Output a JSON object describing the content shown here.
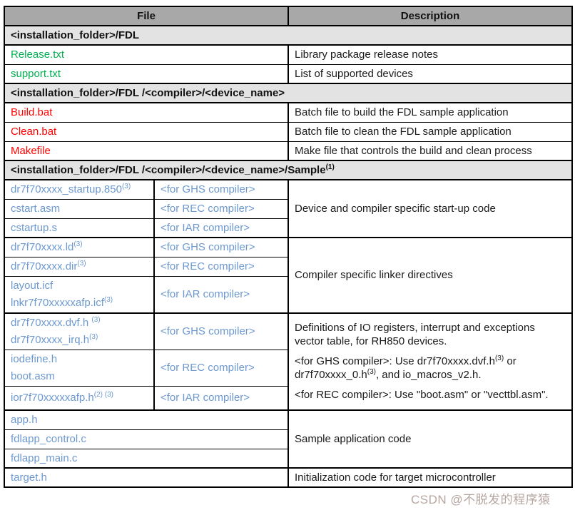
{
  "colors": {
    "header_bg": "#a8a8a8",
    "section_bg": "#e3e3e3",
    "file_green": "#00b050",
    "file_red": "#ff0000",
    "file_blue": "#6d99d0",
    "border": "#000000",
    "watermark": "#b09e98"
  },
  "watermark": {
    "text": "CSDN @不脱发的程序猿"
  },
  "table": {
    "header": {
      "file": "File",
      "description": "Description"
    },
    "sections": [
      {
        "label": "<installation_folder>/FDL",
        "sup": ""
      },
      {
        "label": "<installation_folder>/FDL /<compiler>/<device_name>",
        "sup": ""
      },
      {
        "label": "<installation_folder>/FDL /<compiler>/<device_name>/Sample",
        "sup": "(1)"
      }
    ],
    "rows": {
      "release": {
        "file": "Release.txt",
        "desc": "Library package release notes"
      },
      "support": {
        "file": "support.txt",
        "desc": "List of supported devices"
      },
      "build": {
        "file": "Build.bat",
        "desc": "Batch file to build the FDL sample application"
      },
      "clean": {
        "file": "Clean.bat",
        "desc": "Batch file to clean the FDL sample application"
      },
      "makefile": {
        "file": "Makefile",
        "desc": "Make file that controls the build and clean process"
      },
      "startup": {
        "file": "dr7f70xxxx_startup.850",
        "sup": "(3)",
        "compiler": "<for GHS compiler>"
      },
      "cstart": {
        "file": "cstart.asm",
        "compiler": "<for REC compiler>"
      },
      "cstartup": {
        "file": "cstartup.s",
        "compiler": "<for IAR compiler>"
      },
      "startup_desc": "Device and compiler specific start-up code",
      "ld": {
        "file": "dr7f70xxxx.ld",
        "sup": "(3)",
        "compiler": "<for GHS compiler>"
      },
      "dir": {
        "file": "dr7f70xxxx.dir",
        "sup": "(3)",
        "compiler": "<for REC compiler>"
      },
      "icf": {
        "file1": "layout.icf",
        "file2": "lnkr7f70xxxxxafp.icf",
        "sup2": "(3)",
        "compiler": "<for IAR compiler>"
      },
      "linker_desc": "Compiler specific linker directives",
      "dvf": {
        "file1": "dr7f70xxxx.dvf.h ",
        "sup1": "(3)",
        "file2": "dr7f70xxxx_irq.h",
        "sup2": "(3)",
        "compiler": "<for GHS compiler>"
      },
      "iodefine": {
        "file1": "iodefine.h",
        "file2": "boot.asm",
        "compiler": "<for REC compiler>"
      },
      "ior": {
        "file": "ior7f70xxxxxafp.h",
        "sup": "(2) (3)",
        "compiler": "<for IAR compiler>"
      },
      "io_desc": {
        "p1": "Definitions of IO registers, interrupt and exceptions vector table, for RH850 devices.",
        "p2a": "<for GHS compiler>: Use dr7f70xxxx.dvf.h",
        "p2sup1": "(3)",
        "p2b": " or dr7f70xxxx_0.h",
        "p2sup2": "(3)",
        "p2c": ", and io_macros_v2.h.",
        "p3": "<for REC compiler>: Use \"boot.asm\" or \"vecttbl.asm\"."
      },
      "apph": {
        "file": "app.h"
      },
      "control": {
        "file": "fdlapp_control.c"
      },
      "main": {
        "file": "fdlapp_main.c"
      },
      "sample_desc": "Sample application code",
      "target": {
        "file": "target.h",
        "desc": "Initialization code for target microcontroller"
      }
    }
  }
}
